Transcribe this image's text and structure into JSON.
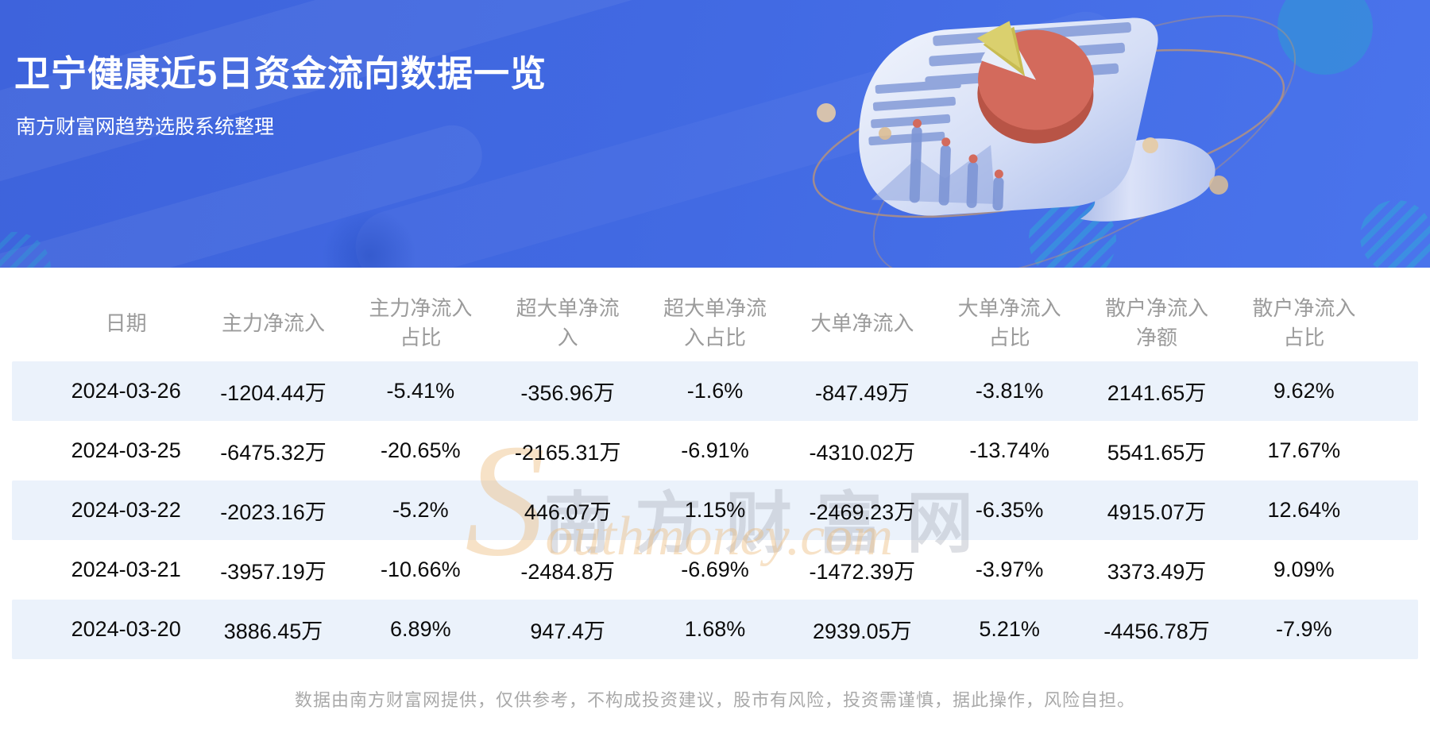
{
  "banner": {
    "title": "卫宁健康近5日资金流向数据一览",
    "subtitle": "南方财富网趋势选股系统整理"
  },
  "chart_data": {
    "type": "table",
    "title": "卫宁健康近5日资金流向数据一览",
    "source_note": "南方财富网趋势选股系统整理",
    "columns": [
      "日期",
      "主力净流入",
      "主力净流入占比",
      "超大单净流入",
      "超大单净流入占比",
      "大单净流入",
      "大单净流入占比",
      "散户净流入净额",
      "散户净流入占比"
    ],
    "rows": [
      [
        "2024-03-26",
        "-1204.44万",
        "-5.41%",
        "-356.96万",
        "-1.6%",
        "-847.49万",
        "-3.81%",
        "2141.65万",
        "9.62%"
      ],
      [
        "2024-03-25",
        "-6475.32万",
        "-20.65%",
        "-2165.31万",
        "-6.91%",
        "-4310.02万",
        "-13.74%",
        "5541.65万",
        "17.67%"
      ],
      [
        "2024-03-22",
        "-2023.16万",
        "-5.2%",
        "446.07万",
        "1.15%",
        "-2469.23万",
        "-6.35%",
        "4915.07万",
        "12.64%"
      ],
      [
        "2024-03-21",
        "-3957.19万",
        "-10.66%",
        "-2484.8万",
        "-6.69%",
        "-1472.39万",
        "-3.97%",
        "3373.49万",
        "9.09%"
      ],
      [
        "2024-03-20",
        "3886.45万",
        "6.89%",
        "947.4万",
        "1.68%",
        "2939.05万",
        "5.21%",
        "-4456.78万",
        "-7.9%"
      ]
    ]
  },
  "table": {
    "header_labels": [
      "日期",
      "主力净流入",
      "主力净流入\n占比",
      "超大单净流\n入",
      "超大单净流\n入占比",
      "大单净流入",
      "大单净流入\n占比",
      "散户净流入\n净额",
      "散户净流入\n占比"
    ]
  },
  "watermark": {
    "cn": "南方财富网",
    "en": "Southmoney.com"
  },
  "footer": {
    "disclaimer": "数据由南方财富网提供，仅供参考，不构成投资建议，股市有风险，投资需谨慎，据此操作，风险自担。"
  },
  "colors": {
    "banner_bg": "#4169E2",
    "title_text": "#FFFFFF",
    "row_stripe": "#EBF2FB",
    "header_text": "#9B9B9B",
    "body_text": "#0B0B0B",
    "footer_text": "#A9A9A9",
    "watermark_gray": "#ABAEBC",
    "watermark_tan": "#E8B26E",
    "pie_red": "#D36A5C",
    "pie_slice_yellow": "#DAD06E"
  }
}
